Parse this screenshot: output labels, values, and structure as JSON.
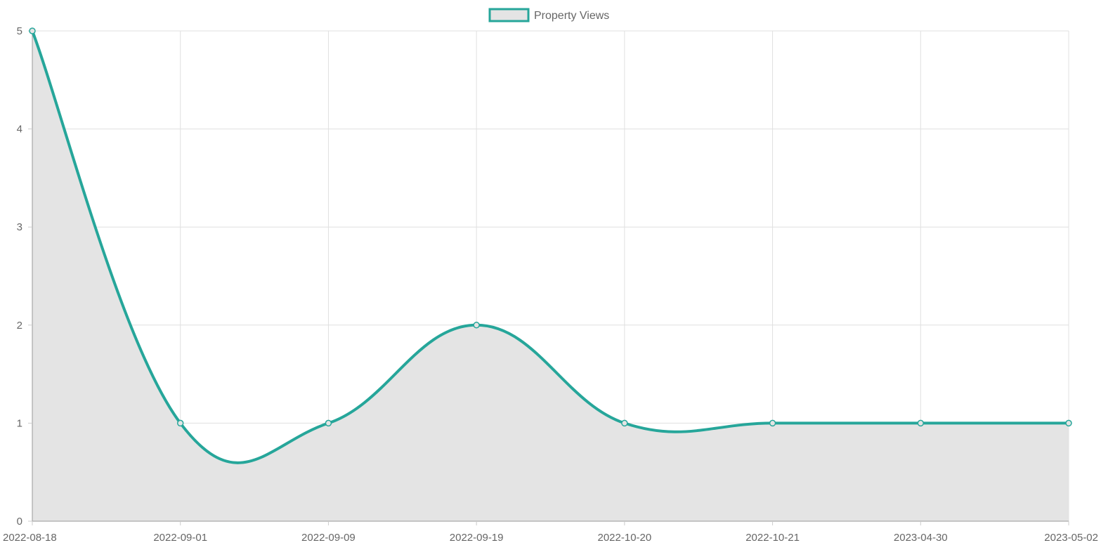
{
  "chart_data": {
    "type": "area",
    "categories": [
      "2022-08-18",
      "2022-09-01",
      "2022-09-09",
      "2022-09-19",
      "2022-10-20",
      "2022-10-21",
      "2023-04-30",
      "2023-05-02"
    ],
    "series": [
      {
        "name": "Property Views",
        "values": [
          5,
          1,
          1,
          2,
          1,
          1,
          1,
          1
        ],
        "color": "#26a69a",
        "fill": "#e4e4e4"
      }
    ],
    "y_ticks": [
      0,
      1,
      2,
      3,
      4,
      5
    ],
    "ylim": [
      0,
      5
    ],
    "grid": true,
    "legend": "top-center",
    "smooth": true
  }
}
